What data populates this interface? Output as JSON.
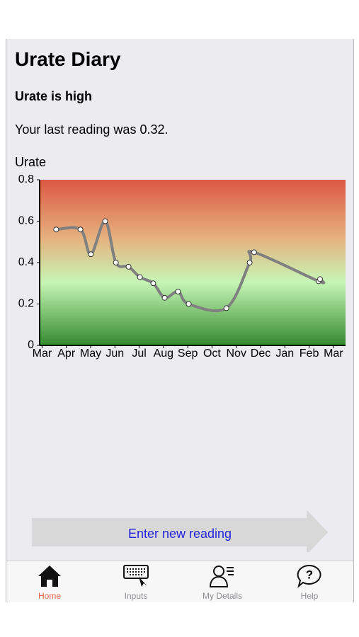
{
  "header": {
    "title": "Urate Diary",
    "status": "Urate is high",
    "last_reading": "Your last reading was 0.32."
  },
  "chart_data": {
    "type": "line",
    "ylabel": "Urate",
    "x": [
      0.58,
      1.58,
      2.01,
      2.6,
      3.04,
      3.56,
      4.03,
      4.58,
      5.05,
      5.6,
      6.04,
      7.59,
      8.55,
      8.73,
      11.39,
      11.45
    ],
    "values": [
      0.56,
      0.56,
      0.44,
      0.6,
      0.4,
      0.38,
      0.33,
      0.3,
      0.23,
      0.26,
      0.2,
      0.18,
      0.4,
      0.45,
      0.31,
      0.32
    ],
    "color": "#808080",
    "xlim": [
      -0.1,
      12.5
    ],
    "xticks": [
      {
        "value": 0,
        "label": "Mar"
      },
      {
        "value": 1,
        "label": "Apr"
      },
      {
        "value": 2,
        "label": "May"
      },
      {
        "value": 3,
        "label": "Jun"
      },
      {
        "value": 4,
        "label": "Jul"
      },
      {
        "value": 5,
        "label": "Aug"
      },
      {
        "value": 6,
        "label": "Sep"
      },
      {
        "value": 7,
        "label": "Oct"
      },
      {
        "value": 8,
        "label": "Nov"
      },
      {
        "value": 9,
        "label": "Dec"
      },
      {
        "value": 10,
        "label": "Jan"
      },
      {
        "value": 11,
        "label": "Feb"
      },
      {
        "value": 12,
        "label": "Mar"
      }
    ],
    "ylim": [
      0,
      0.8
    ],
    "yticks": [
      0,
      0.2,
      0.4,
      0.6,
      0.8
    ]
  },
  "button": {
    "label": "Enter new reading"
  },
  "tabs": [
    {
      "label": "Home"
    },
    {
      "label": "Inputs"
    },
    {
      "label": "My Details"
    },
    {
      "label": "Help"
    }
  ]
}
